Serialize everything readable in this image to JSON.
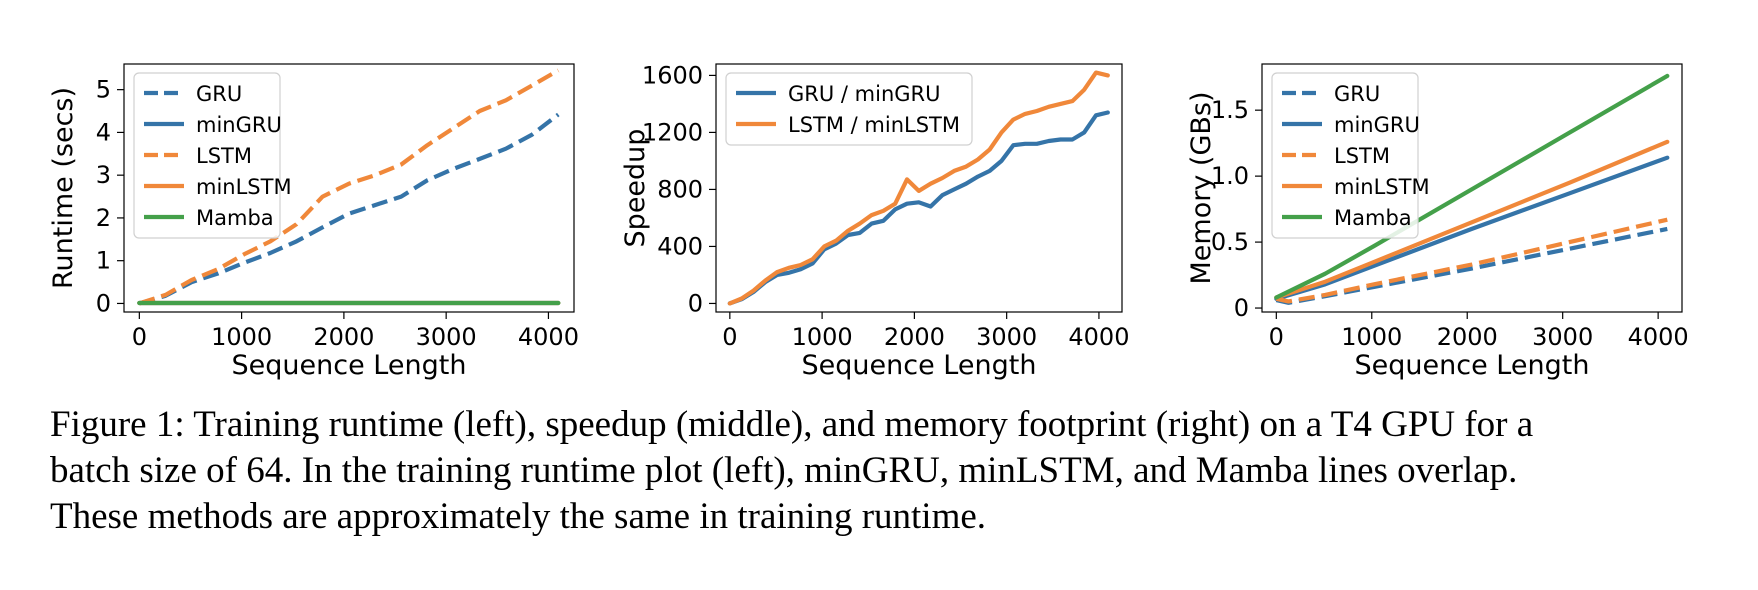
{
  "caption": {
    "line1": "Figure 1: Training runtime (left), speedup (middle), and memory footprint (right) on a T4 GPU for a",
    "line2": "batch size of 64. In the training runtime plot (left), minGRU, minLSTM, and Mamba lines overlap.",
    "line3": "These methods are approximately the same in training runtime."
  },
  "colors": {
    "blue": "#3574a8",
    "orange": "#f0883a",
    "green": "#44a04a"
  },
  "chart_data": [
    {
      "id": "runtime",
      "type": "line",
      "title": "",
      "xlabel": "Sequence Length",
      "ylabel": "Runtime (secs)",
      "xlim": [
        -150,
        4250
      ],
      "ylim": [
        -0.2,
        5.6
      ],
      "xticks": [
        0,
        1000,
        2000,
        3000,
        4000
      ],
      "yticks": [
        0,
        1,
        2,
        3,
        4,
        5
      ],
      "grid": false,
      "legend": "top-left",
      "series": [
        {
          "name": "GRU",
          "color": "blue",
          "style": "dashed",
          "x": [
            0,
            256,
            512,
            768,
            1024,
            1280,
            1536,
            1792,
            2048,
            2304,
            2560,
            2816,
            3072,
            3328,
            3584,
            3840,
            4096
          ],
          "y": [
            0,
            0.18,
            0.5,
            0.7,
            0.95,
            1.18,
            1.45,
            1.78,
            2.1,
            2.3,
            2.5,
            2.88,
            3.15,
            3.38,
            3.62,
            3.95,
            4.42
          ]
        },
        {
          "name": "minGRU",
          "color": "blue",
          "style": "solid",
          "x": [
            0,
            4096
          ],
          "y": [
            0.01,
            0.01
          ]
        },
        {
          "name": "LSTM",
          "color": "orange",
          "style": "dashed",
          "x": [
            0,
            256,
            512,
            768,
            1024,
            1280,
            1536,
            1792,
            2048,
            2304,
            2560,
            2816,
            3072,
            3328,
            3584,
            3840,
            4096
          ],
          "y": [
            0,
            0.2,
            0.55,
            0.8,
            1.15,
            1.45,
            1.85,
            2.5,
            2.8,
            3.0,
            3.25,
            3.7,
            4.1,
            4.5,
            4.75,
            5.1,
            5.45
          ]
        },
        {
          "name": "minLSTM",
          "color": "orange",
          "style": "solid",
          "x": [
            0,
            4096
          ],
          "y": [
            0.01,
            0.01
          ]
        },
        {
          "name": "Mamba",
          "color": "green",
          "style": "solid",
          "x": [
            0,
            4096
          ],
          "y": [
            0.01,
            0.01
          ]
        }
      ]
    },
    {
      "id": "speedup",
      "type": "line",
      "title": "",
      "xlabel": "Sequence Length",
      "ylabel": "Speedup",
      "xlim": [
        -150,
        4250
      ],
      "ylim": [
        -60,
        1680
      ],
      "xticks": [
        0,
        1000,
        2000,
        3000,
        4000
      ],
      "yticks": [
        0,
        400,
        800,
        1200,
        1600
      ],
      "grid": false,
      "legend": "top-left",
      "series": [
        {
          "name": "GRU / minGRU",
          "color": "blue",
          "style": "solid",
          "x": [
            0,
            128,
            256,
            384,
            512,
            640,
            768,
            896,
            1024,
            1152,
            1280,
            1408,
            1536,
            1664,
            1792,
            1920,
            2048,
            2176,
            2304,
            2432,
            2560,
            2688,
            2816,
            2944,
            3072,
            3200,
            3328,
            3456,
            3584,
            3712,
            3840,
            3968,
            4096
          ],
          "y": [
            0,
            30,
            80,
            150,
            200,
            215,
            240,
            280,
            380,
            420,
            480,
            495,
            560,
            580,
            660,
            700,
            710,
            680,
            760,
            800,
            840,
            890,
            930,
            1000,
            1110,
            1120,
            1120,
            1140,
            1150,
            1150,
            1200,
            1320,
            1340
          ]
        },
        {
          "name": "LSTM / minLSTM",
          "color": "orange",
          "style": "solid",
          "x": [
            0,
            128,
            256,
            384,
            512,
            640,
            768,
            896,
            1024,
            1152,
            1280,
            1408,
            1536,
            1664,
            1792,
            1920,
            2048,
            2176,
            2304,
            2432,
            2560,
            2688,
            2816,
            2944,
            3072,
            3200,
            3328,
            3456,
            3584,
            3712,
            3840,
            3968,
            4096
          ],
          "y": [
            0,
            35,
            90,
            160,
            220,
            250,
            270,
            310,
            400,
            440,
            510,
            560,
            620,
            650,
            700,
            870,
            790,
            840,
            880,
            930,
            960,
            1010,
            1080,
            1200,
            1290,
            1330,
            1350,
            1380,
            1400,
            1420,
            1500,
            1620,
            1600
          ]
        }
      ]
    },
    {
      "id": "memory",
      "type": "line",
      "title": "",
      "xlabel": "Sequence Length",
      "ylabel": "Memory (GBs)",
      "xlim": [
        -150,
        4250
      ],
      "ylim": [
        -0.03,
        1.85
      ],
      "xticks": [
        0,
        1000,
        2000,
        3000,
        4000
      ],
      "yticks": [
        0,
        0.5,
        1.0,
        1.5
      ],
      "yticklabels": [
        "0",
        "0.5",
        "1.0",
        "1.5"
      ],
      "grid": false,
      "legend": "top-left",
      "series": [
        {
          "name": "GRU",
          "color": "blue",
          "style": "dashed",
          "x": [
            0,
            128,
            512,
            1024,
            2048,
            3072,
            4096
          ],
          "y": [
            0.06,
            0.04,
            0.09,
            0.16,
            0.3,
            0.45,
            0.6
          ]
        },
        {
          "name": "minGRU",
          "color": "blue",
          "style": "solid",
          "x": [
            0,
            512,
            1024,
            2048,
            3072,
            4096
          ],
          "y": [
            0.07,
            0.18,
            0.32,
            0.6,
            0.87,
            1.14
          ]
        },
        {
          "name": "LSTM",
          "color": "orange",
          "style": "dashed",
          "x": [
            0,
            128,
            512,
            1024,
            2048,
            3072,
            4096
          ],
          "y": [
            0.07,
            0.05,
            0.1,
            0.18,
            0.33,
            0.5,
            0.67
          ]
        },
        {
          "name": "minLSTM",
          "color": "orange",
          "style": "solid",
          "x": [
            0,
            512,
            1024,
            2048,
            3072,
            4096
          ],
          "y": [
            0.08,
            0.2,
            0.35,
            0.65,
            0.95,
            1.26
          ]
        },
        {
          "name": "Mamba",
          "color": "green",
          "style": "solid",
          "x": [
            0,
            512,
            1024,
            2048,
            3072,
            4096
          ],
          "y": [
            0.08,
            0.26,
            0.47,
            0.9,
            1.33,
            1.76
          ]
        }
      ]
    }
  ]
}
